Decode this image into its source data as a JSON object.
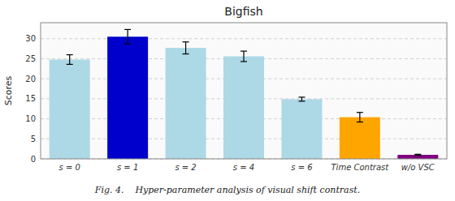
{
  "chart_data": {
    "type": "bar",
    "title": "Bigfish",
    "ylabel": "Scores",
    "categories": [
      "s = 0",
      "s = 1",
      "s = 2",
      "s = 4",
      "s = 6",
      "Time Contrast",
      "w/o VSC"
    ],
    "values": [
      24.8,
      30.5,
      27.7,
      25.6,
      14.9,
      10.4,
      1.0
    ],
    "errors": [
      1.2,
      1.8,
      1.5,
      1.3,
      0.5,
      1.2,
      0.15
    ],
    "colors": [
      "#ADD8E6",
      "#0000CC",
      "#ADD8E6",
      "#ADD8E6",
      "#ADD8E6",
      "#FFA500",
      "#800080"
    ],
    "ylim": [
      0,
      34
    ],
    "yticks": [
      0,
      5,
      10,
      15,
      20,
      25,
      30
    ],
    "grid": true,
    "caption": "Fig. 4.    Hyper-parameter analysis of visual shift contrast."
  }
}
